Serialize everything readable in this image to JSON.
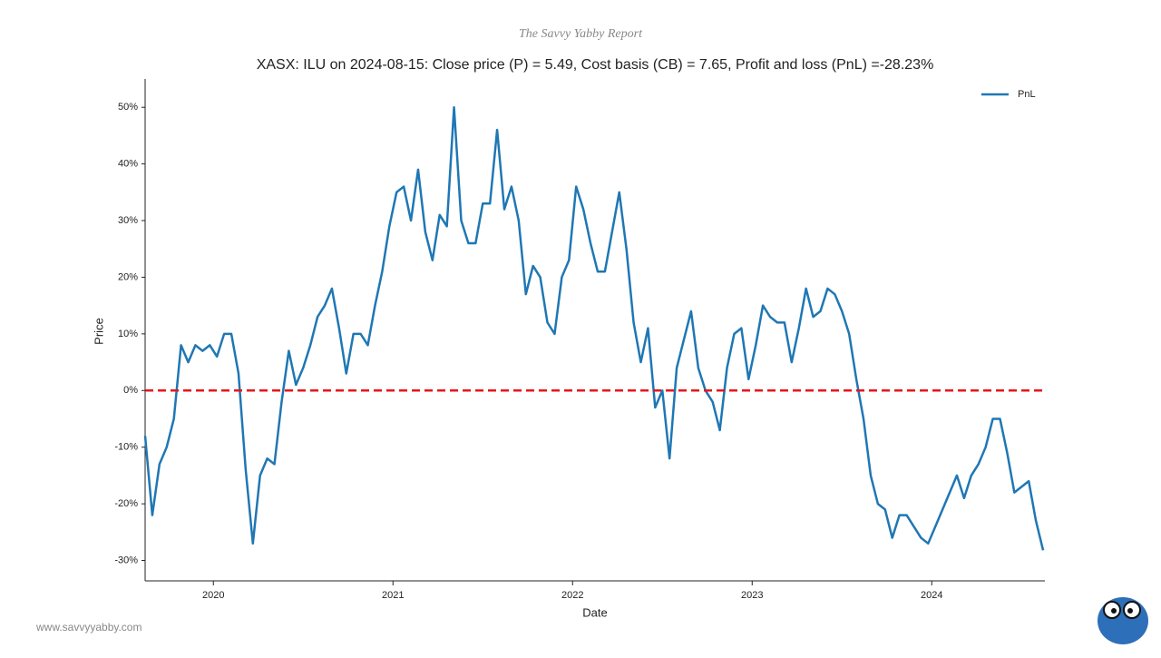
{
  "watermark": "The Savvy Yabby Report",
  "footer": "www.savvyyabby.com",
  "chart_data": {
    "type": "line",
    "title": "XASX: ILU on 2024-08-15: Close price (P) = 5.49, Cost basis (CB) = 7.65, Profit and loss (PnL) =-28.23%",
    "xlabel": "Date",
    "ylabel": "Price",
    "xlim": [
      2019.62,
      2024.63
    ],
    "xticks": [
      2020,
      2021,
      2022,
      2023,
      2024
    ],
    "ylim": [
      -33.6,
      55
    ],
    "yticks": [
      {
        "value": -30,
        "label": "-30%"
      },
      {
        "value": -20,
        "label": "-20%"
      },
      {
        "value": -10,
        "label": "-10%"
      },
      {
        "value": 0,
        "label": "0%"
      },
      {
        "value": 10,
        "label": "10%"
      },
      {
        "value": 20,
        "label": "20%"
      },
      {
        "value": 30,
        "label": "30%"
      },
      {
        "value": 40,
        "label": "40%"
      },
      {
        "value": 50,
        "label": "50%"
      }
    ],
    "hline": 0,
    "hline_color": "#e8151b",
    "legend": "upper-right",
    "x": [
      2019.62,
      2019.66,
      2019.7,
      2019.74,
      2019.78,
      2019.82,
      2019.86,
      2019.9,
      2019.94,
      2019.98,
      2020.02,
      2020.06,
      2020.1,
      2020.14,
      2020.18,
      2020.22,
      2020.26,
      2020.3,
      2020.34,
      2020.38,
      2020.42,
      2020.46,
      2020.5,
      2020.54,
      2020.58,
      2020.62,
      2020.66,
      2020.7,
      2020.74,
      2020.78,
      2020.82,
      2020.86,
      2020.9,
      2020.94,
      2020.98,
      2021.02,
      2021.06,
      2021.1,
      2021.14,
      2021.18,
      2021.22,
      2021.26,
      2021.3,
      2021.34,
      2021.38,
      2021.42,
      2021.46,
      2021.5,
      2021.54,
      2021.58,
      2021.62,
      2021.66,
      2021.7,
      2021.74,
      2021.78,
      2021.82,
      2021.86,
      2021.9,
      2021.94,
      2021.98,
      2022.02,
      2022.06,
      2022.1,
      2022.14,
      2022.18,
      2022.22,
      2022.26,
      2022.3,
      2022.34,
      2022.38,
      2022.42,
      2022.46,
      2022.5,
      2022.54,
      2022.58,
      2022.62,
      2022.66,
      2022.7,
      2022.74,
      2022.78,
      2022.82,
      2022.86,
      2022.9,
      2022.94,
      2022.98,
      2023.02,
      2023.06,
      2023.1,
      2023.14,
      2023.18,
      2023.22,
      2023.26,
      2023.3,
      2023.34,
      2023.38,
      2023.42,
      2023.46,
      2023.5,
      2023.54,
      2023.58,
      2023.62,
      2023.66,
      2023.7,
      2023.74,
      2023.78,
      2023.82,
      2023.86,
      2023.9,
      2023.94,
      2023.98,
      2024.02,
      2024.06,
      2024.1,
      2024.14,
      2024.18,
      2024.22,
      2024.26,
      2024.3,
      2024.34,
      2024.38,
      2024.42,
      2024.46,
      2024.5,
      2024.54,
      2024.58,
      2024.62
    ],
    "series": [
      {
        "name": "PnL",
        "color": "#1f77b4",
        "values": [
          -8,
          -22,
          -13,
          -10,
          -5,
          8,
          5,
          8,
          7,
          8,
          6,
          10,
          10,
          3,
          -14,
          -27,
          -15,
          -12,
          -13,
          -2,
          7,
          1,
          4,
          8,
          13,
          15,
          18,
          11,
          3,
          10,
          10,
          8,
          15,
          21,
          29,
          35,
          36,
          30,
          39,
          28,
          23,
          31,
          29,
          50,
          30,
          26,
          26,
          33,
          33,
          46,
          32,
          36,
          30,
          17,
          22,
          20,
          12,
          10,
          20,
          23,
          36,
          32,
          26,
          21,
          21,
          28,
          35,
          25,
          12,
          5,
          11,
          -3,
          0,
          -12,
          4,
          9,
          14,
          4,
          0,
          -2,
          -7,
          4,
          10,
          11,
          2,
          8,
          15,
          13,
          12,
          12,
          5,
          11,
          18,
          13,
          14,
          18,
          17,
          14,
          10,
          2,
          -5,
          -15,
          -20,
          -21,
          -26,
          -22,
          -22,
          -24,
          -26,
          -27,
          -24,
          -21,
          -18,
          -15,
          -19,
          -15,
          -13,
          -10,
          -5,
          -5,
          -11,
          -18,
          -17,
          -16,
          -23,
          -28.2
        ]
      }
    ]
  }
}
